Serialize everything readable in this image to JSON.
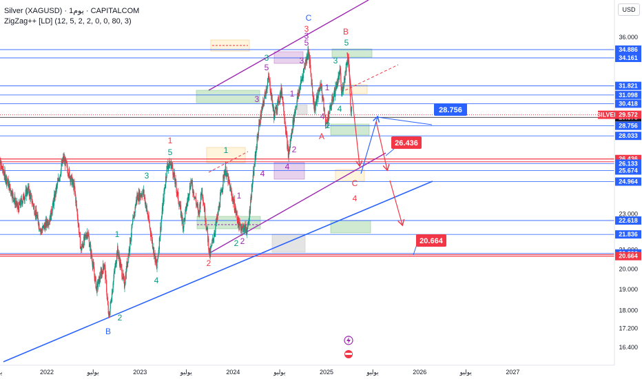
{
  "header": {
    "symbol_line": "Silver (XAGUSD) · 1يوم · CAPITALCOM",
    "indicator_line": "ZigZag++ [LD] (12, 5, 2, 2, 0, 0, 80, 3)"
  },
  "currency_button": "USD",
  "chart_data": {
    "type": "candlestick",
    "title": "Silver (XAGUSD) · 1يوم · CAPITALCOM",
    "y_scale": "log",
    "ylim": [
      16.0,
      38.0
    ],
    "xlim": [
      "2021-06-15",
      "2027-08-31"
    ],
    "y_ticks": [
      "36.000",
      "23.000",
      "21.000",
      "20.000",
      "19.000",
      "18.000",
      "17.200",
      "16.400"
    ],
    "x_ticks": [
      {
        "label": "يو",
        "date": "2021-07-01"
      },
      {
        "label": "2022",
        "date": "2022-01-01"
      },
      {
        "label": "يوليو",
        "date": "2022-07-01"
      },
      {
        "label": "2023",
        "date": "2023-01-01"
      },
      {
        "label": "يوليو",
        "date": "2023-07-01"
      },
      {
        "label": "2024",
        "date": "2024-01-01"
      },
      {
        "label": "يوليو",
        "date": "2024-07-01"
      },
      {
        "label": "2025",
        "date": "2025-01-01"
      },
      {
        "label": "يوليو",
        "date": "2025-07-01"
      },
      {
        "label": "2026",
        "date": "2026-01-01"
      },
      {
        "label": "يوليو",
        "date": "2026-07-01"
      },
      {
        "label": "2027",
        "date": "2027-01-01"
      }
    ],
    "price_path": [
      {
        "date": "2021-06-15",
        "price": 26.8
      },
      {
        "date": "2021-07-20",
        "price": 25.4
      },
      {
        "date": "2021-09-10",
        "price": 23.3
      },
      {
        "date": "2021-10-20",
        "price": 24.5
      },
      {
        "date": "2021-12-10",
        "price": 22.0
      },
      {
        "date": "2022-01-15",
        "price": 22.8
      },
      {
        "date": "2022-03-08",
        "price": 26.5
      },
      {
        "date": "2022-04-20",
        "price": 24.5
      },
      {
        "date": "2022-05-15",
        "price": 21.0
      },
      {
        "date": "2022-06-10",
        "price": 22.0
      },
      {
        "date": "2022-07-15",
        "price": 19.0
      },
      {
        "date": "2022-08-15",
        "price": 20.3
      },
      {
        "date": "2022-09-01",
        "price": 17.6
      },
      {
        "date": "2022-10-05",
        "price": 21.0
      },
      {
        "date": "2022-11-01",
        "price": 19.2
      },
      {
        "date": "2022-12-20",
        "price": 24.0
      },
      {
        "date": "2023-01-15",
        "price": 24.3
      },
      {
        "date": "2023-03-08",
        "price": 20.0
      },
      {
        "date": "2023-04-18",
        "price": 26.0
      },
      {
        "date": "2023-05-05",
        "price": 26.1
      },
      {
        "date": "2023-06-20",
        "price": 22.3
      },
      {
        "date": "2023-07-20",
        "price": 25.0
      },
      {
        "date": "2023-08-20",
        "price": 23.0
      },
      {
        "date": "2023-09-01",
        "price": 24.5
      },
      {
        "date": "2023-10-02",
        "price": 20.7
      },
      {
        "date": "2023-11-01",
        "price": 22.8
      },
      {
        "date": "2023-12-01",
        "price": 25.8
      },
      {
        "date": "2024-01-25",
        "price": 22.3
      },
      {
        "date": "2024-02-28",
        "price": 22.1
      },
      {
        "date": "2024-04-12",
        "price": 28.8
      },
      {
        "date": "2024-05-20",
        "price": 32.5
      },
      {
        "date": "2024-06-10",
        "price": 29.5
      },
      {
        "date": "2024-07-10",
        "price": 31.5
      },
      {
        "date": "2024-08-05",
        "price": 26.6
      },
      {
        "date": "2024-08-30",
        "price": 29.8
      },
      {
        "date": "2024-10-22",
        "price": 34.8
      },
      {
        "date": "2024-11-15",
        "price": 30.0
      },
      {
        "date": "2024-12-10",
        "price": 32.0
      },
      {
        "date": "2024-12-30",
        "price": 28.8
      },
      {
        "date": "2025-02-25",
        "price": 33.0
      },
      {
        "date": "2025-03-01",
        "price": 31.0
      },
      {
        "date": "2025-03-28",
        "price": 34.5
      },
      {
        "date": "2025-04-07",
        "price": 29.6
      },
      {
        "date": "2025-04-10",
        "price": 30.0
      }
    ],
    "price_levels": [
      {
        "value": "34.886",
        "color": "#2962ff"
      },
      {
        "value": "34.161",
        "color": "#2962ff"
      },
      {
        "value": "31.821",
        "color": "#2962ff"
      },
      {
        "value": "31.098",
        "color": "#2962ff"
      },
      {
        "value": "30.418",
        "color": "#2962ff"
      },
      {
        "value": "29.378",
        "color": "#131722"
      },
      {
        "value": "28.756",
        "color": "#2962ff"
      },
      {
        "value": "28.033",
        "color": "#2962ff"
      },
      {
        "value": "26.436",
        "color": "#f23645"
      },
      {
        "value": "26.133",
        "color": "#2962ff"
      },
      {
        "value": "25.674",
        "color": "#2962ff"
      },
      {
        "value": "24.964",
        "color": "#2962ff"
      },
      {
        "value": "22.618",
        "color": "#2962ff"
      },
      {
        "value": "21.836",
        "color": "#2962ff"
      },
      {
        "value": "20.806",
        "color": "#2962ff"
      },
      {
        "value": "20.664",
        "color": "#f23645"
      }
    ],
    "last_price": {
      "label": "SILVER",
      "value": "29.572",
      "color": "#f23645"
    },
    "callouts": [
      {
        "value": "28.756",
        "color": "#2962ff"
      },
      {
        "value": "26.436",
        "color": "#f23645"
      },
      {
        "value": "20.664",
        "color": "#f23645"
      }
    ],
    "wave_labels": [
      "1",
      "2",
      "3",
      "4",
      "5",
      "A",
      "B",
      "C"
    ],
    "colors": {
      "up": "#089981",
      "down": "#f23645",
      "level": "#2962ff",
      "support": "#f23645",
      "channel": "#9c27b0",
      "trend": "#2962ff"
    }
  }
}
